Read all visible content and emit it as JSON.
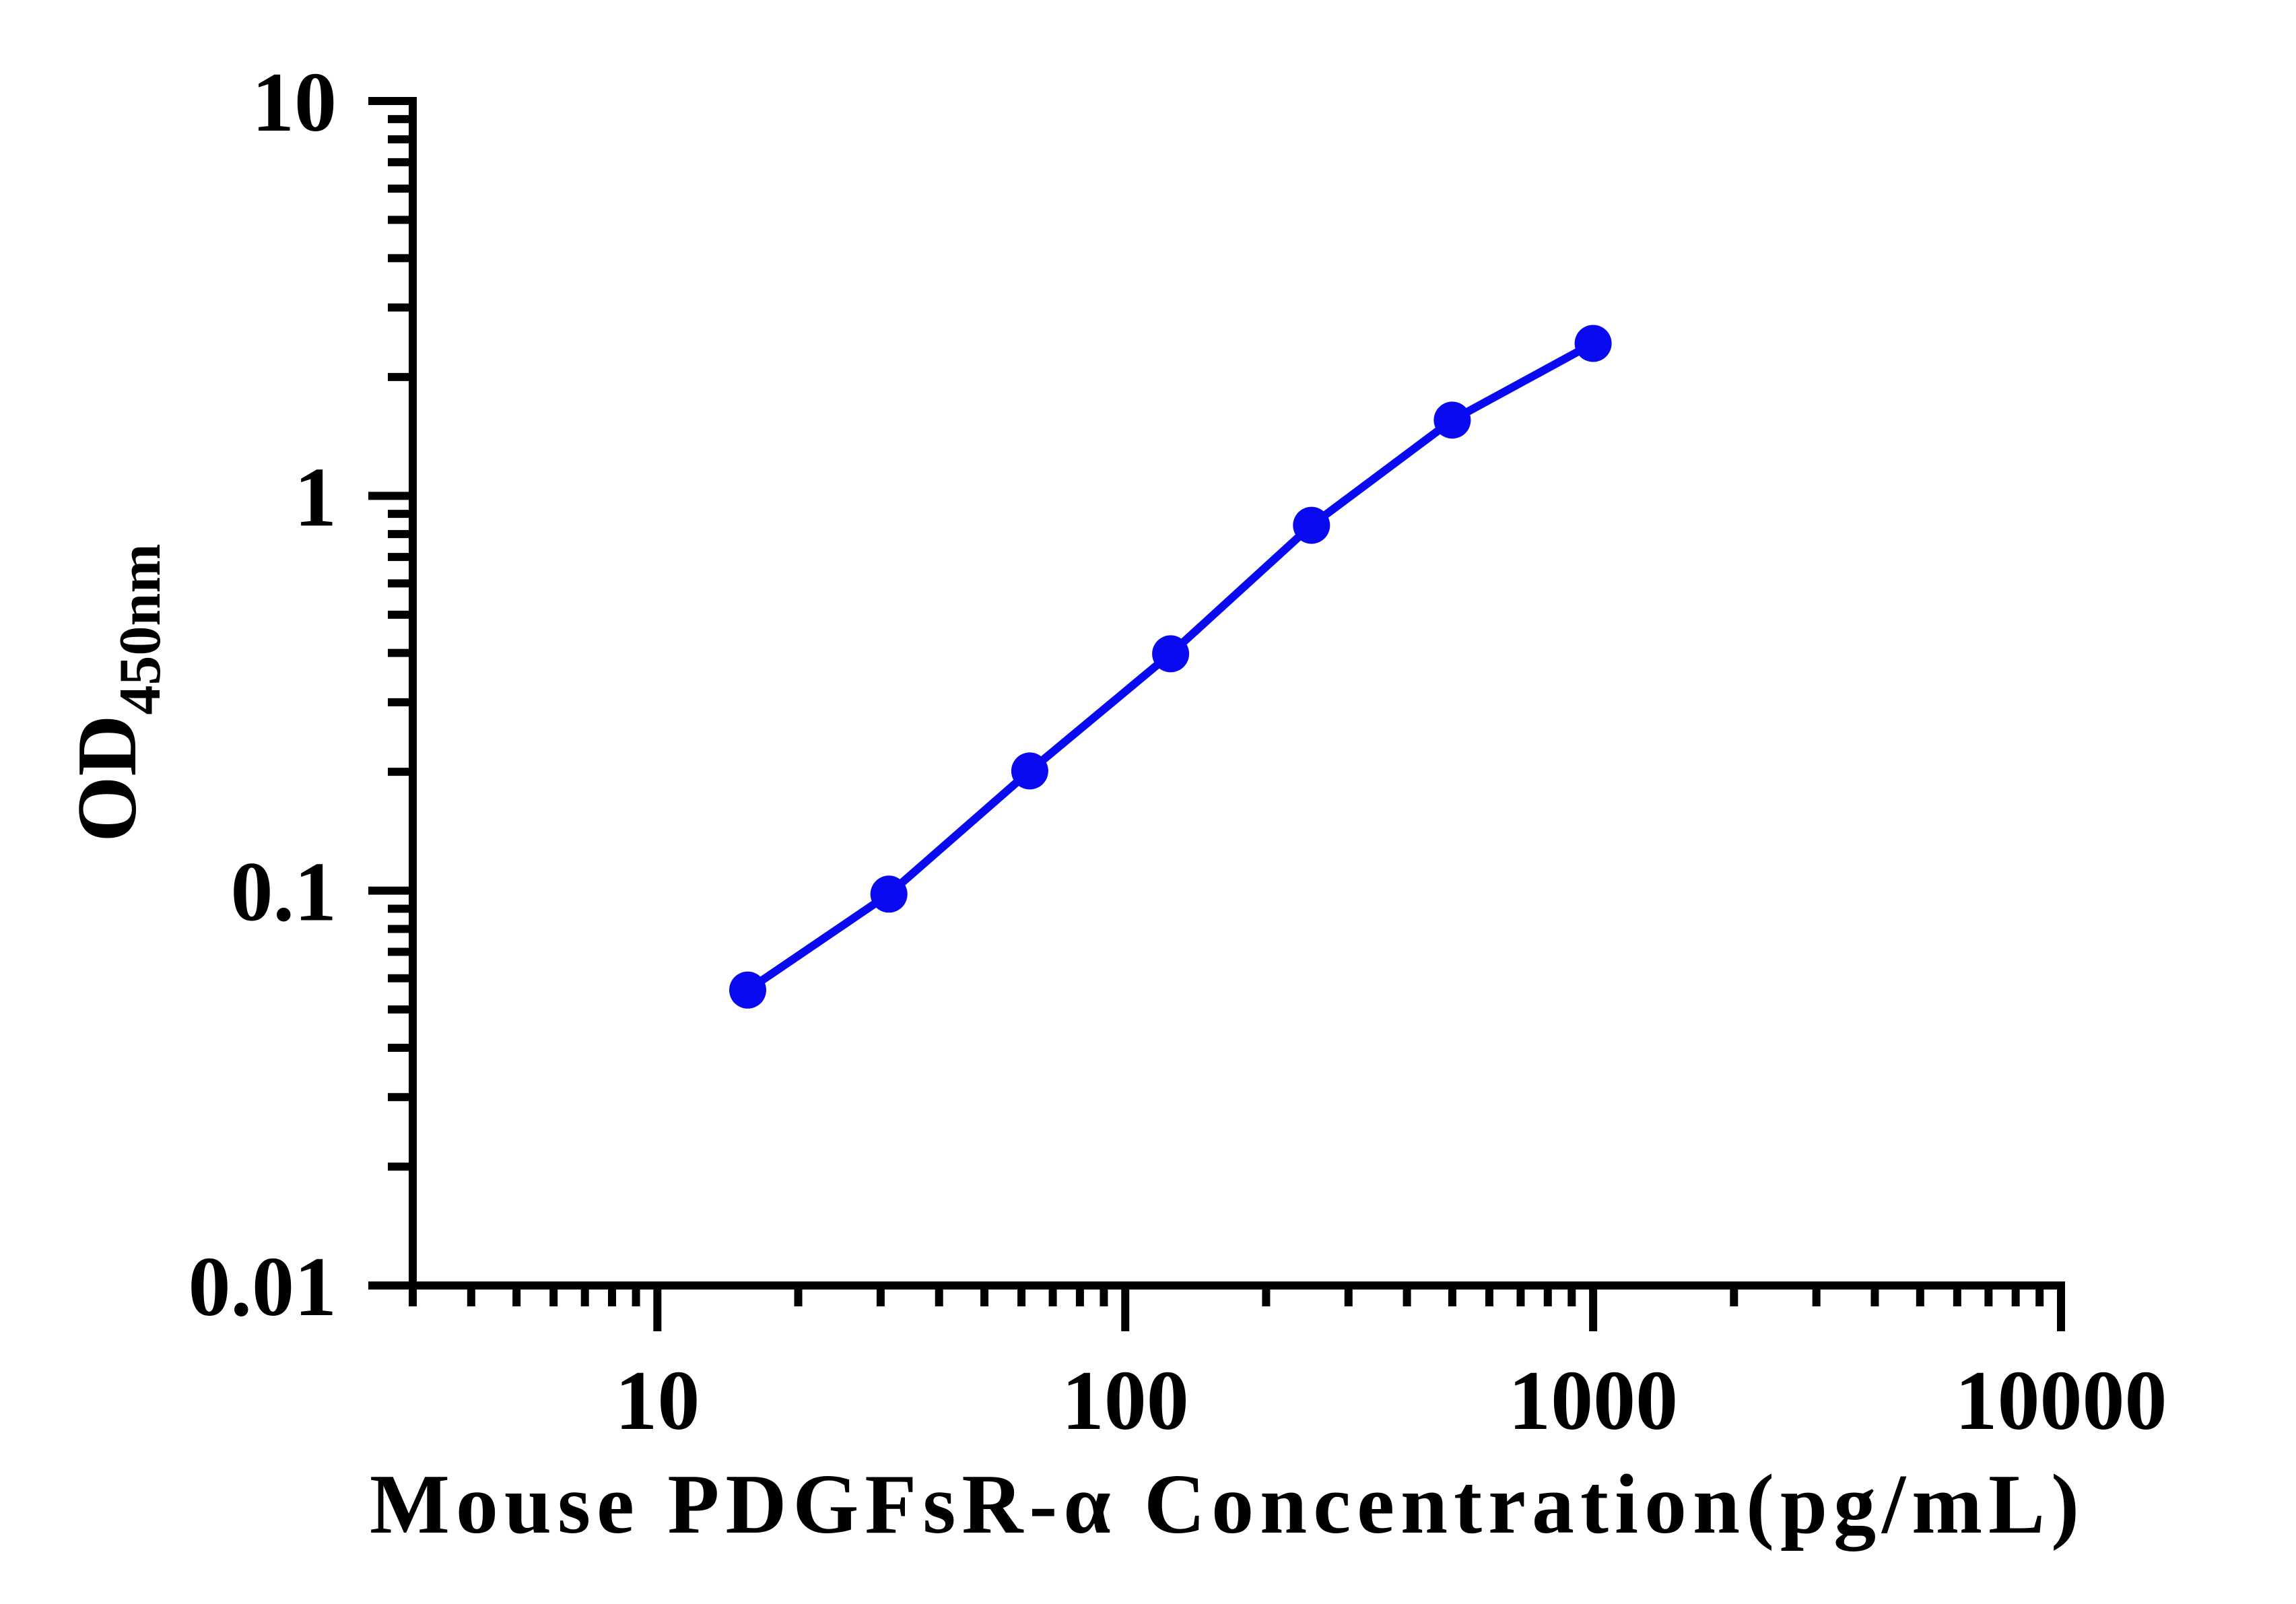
{
  "chart_data": {
    "type": "line",
    "xlabel": "Mouse PDGFsR-α Concentration(pg/mL)",
    "ylabel": "OD",
    "ylabel_subscript": "450nm",
    "x_scale": "log",
    "y_scale": "log",
    "xlim": [
      3,
      10000
    ],
    "ylim": [
      0.01,
      10
    ],
    "x_major_ticks": [
      10,
      100,
      1000,
      10000
    ],
    "x_tick_labels": [
      "10",
      "100",
      "1000",
      "10000"
    ],
    "y_major_ticks": [
      10,
      1,
      0.1,
      0.01
    ],
    "y_tick_labels": [
      "10",
      "1",
      "0.1",
      "0.01"
    ],
    "log_minor_ticks": true,
    "grid": false,
    "legend": "none",
    "axis_color": "#000000",
    "background_color": "#ffffff",
    "series": [
      {
        "color": "#0A0AF0",
        "marker": "circle",
        "x": [
          15.6,
          31.25,
          62.5,
          125,
          250,
          500,
          1000
        ],
        "y": [
          0.056,
          0.098,
          0.201,
          0.398,
          0.842,
          1.555,
          2.432
        ]
      }
    ]
  }
}
